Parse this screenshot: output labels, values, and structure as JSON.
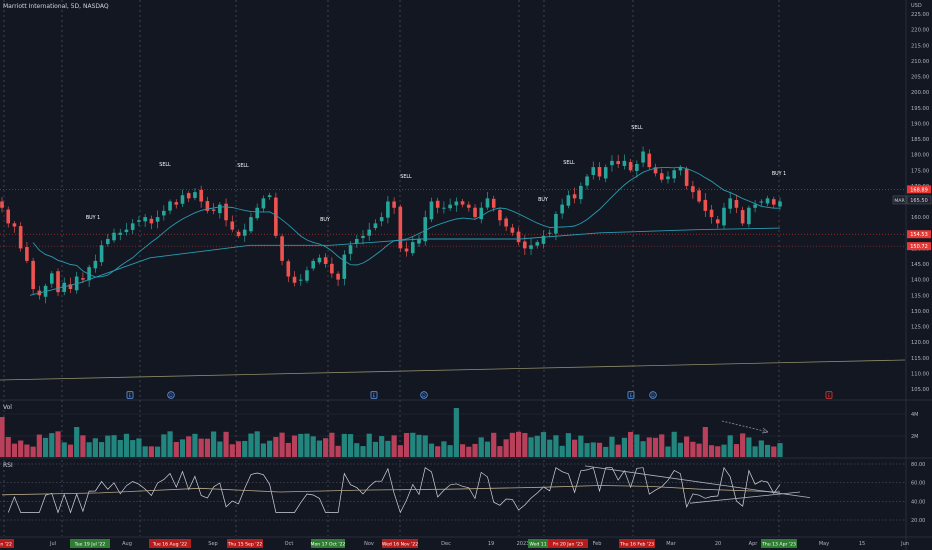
{
  "header": {
    "symbol_title": "Marriott International, 5D, NASDAQ",
    "currency": "USD"
  },
  "price_axis": {
    "ticks": [
      "225.00",
      "220.00",
      "215.00",
      "210.00",
      "205.00",
      "200.00",
      "195.00",
      "190.00",
      "185.00",
      "180.00",
      "175.00",
      "170.00",
      "165.00",
      "160.00",
      "155.00",
      "150.00",
      "145.00",
      "140.00",
      "135.00",
      "130.00",
      "125.00",
      "120.00",
      "115.00",
      "110.00",
      "105.00"
    ]
  },
  "price_badges": [
    {
      "value": "168.89",
      "color": "#e53935",
      "text_color": "#ffffff"
    },
    {
      "value": "165.50",
      "color": "#1e222d",
      "text_color": "#d1d4dc",
      "prefix": "MAR"
    },
    {
      "value": "154.53",
      "color": "#e53935",
      "text_color": "#ffffff"
    },
    {
      "value": "150.72",
      "color": "#e53935",
      "text_color": "#ffffff"
    }
  ],
  "annotations": [
    {
      "text": "BUY 1"
    },
    {
      "text": "SELL"
    },
    {
      "text": "SELL"
    },
    {
      "text": "BUY"
    },
    {
      "text": "SELL"
    },
    {
      "text": "BUY"
    },
    {
      "text": "SELL"
    },
    {
      "text": "SELL"
    },
    {
      "text": "BUY 1"
    }
  ],
  "event_markers": [
    "E",
    "D",
    "E",
    "D",
    "E",
    "D",
    "E"
  ],
  "volume_pane": {
    "label": "Vol",
    "ticks": [
      "4M",
      "2M"
    ]
  },
  "rsi_pane": {
    "label": "RSI",
    "ticks": [
      "80.00",
      "60.00",
      "40.00",
      "20.00"
    ]
  },
  "time_axis": {
    "labels": [
      {
        "text": "Jul"
      },
      {
        "text": "Aug"
      },
      {
        "text": "Sep"
      },
      {
        "text": "Oct"
      },
      {
        "text": "Nov"
      },
      {
        "text": "Dec"
      },
      {
        "text": "19"
      },
      {
        "text": "2023"
      },
      {
        "text": "Feb"
      },
      {
        "text": "Mar"
      },
      {
        "text": "20"
      },
      {
        "text": "Apr"
      },
      {
        "text": "May"
      },
      {
        "text": "15"
      },
      {
        "text": "Jun"
      }
    ],
    "highlights": [
      {
        "text": "Jun '22",
        "color": "#b71c1c"
      },
      {
        "text": "Tue 19 Jul '22",
        "color": "#2e7d32"
      },
      {
        "text": "Tue 16 Aug '22",
        "color": "#b71c1c"
      },
      {
        "text": "Thu 15 Sep '22",
        "color": "#b71c1c"
      },
      {
        "text": "Mon 17 Oct '22",
        "color": "#2e7d32"
      },
      {
        "text": "Wed 16 Nov '22",
        "color": "#b71c1c"
      },
      {
        "text": "Wed 11",
        "color": "#2e7d32"
      },
      {
        "text": "Fri 20 Jan '23",
        "color": "#b71c1c"
      },
      {
        "text": "Thu 16 Feb '23",
        "color": "#b71c1c"
      },
      {
        "text": "Thu 13 Apr '23",
        "color": "#2e7d32"
      }
    ]
  },
  "colors": {
    "background": "#131722",
    "up_candle": "#26a69a",
    "down_candle": "#ef5350",
    "ma_line": "#2a9ab0",
    "long_line": "#8f8d6b",
    "resistance": "#e53935",
    "rsi_line": "#d1d4dc",
    "rsi_ma": "#b7a88a",
    "trendline": "#b2b5be",
    "arrow": "#8d93a6"
  },
  "chart_data": {
    "type": "candlestick",
    "title": "Marriott International, 5D, NASDAQ",
    "y_axis_range": [
      102,
      228
    ],
    "horizontal_levels": [
      168.89,
      154.53,
      150.72
    ],
    "last_price": 165.5,
    "closes": [
      163,
      158,
      157,
      150,
      146,
      137,
      135,
      138,
      142,
      136,
      139,
      137,
      141,
      140,
      144,
      146,
      151,
      153,
      155,
      155,
      156,
      158,
      159,
      160,
      158,
      160,
      162,
      165,
      164,
      167,
      166,
      168,
      165,
      162,
      162,
      164,
      159,
      156,
      154,
      156,
      160,
      163,
      166,
      167,
      154,
      146,
      141,
      139,
      140,
      143,
      146,
      147,
      145,
      142,
      140,
      148,
      151,
      153,
      154,
      156,
      158,
      160,
      165,
      163,
      150,
      149,
      152,
      153,
      160,
      165,
      163,
      163,
      164,
      165,
      164,
      163,
      160,
      163,
      166,
      163,
      159,
      157,
      155,
      152,
      150,
      151,
      152,
      154,
      155,
      161,
      164,
      167,
      166,
      170,
      173,
      176,
      173,
      176,
      178,
      177,
      178,
      175,
      177,
      181,
      176,
      174,
      172,
      173,
      175,
      176,
      170,
      168,
      165,
      162,
      160,
      158,
      163,
      166,
      163,
      158,
      163,
      164,
      165,
      166,
      164,
      165
    ]
  }
}
